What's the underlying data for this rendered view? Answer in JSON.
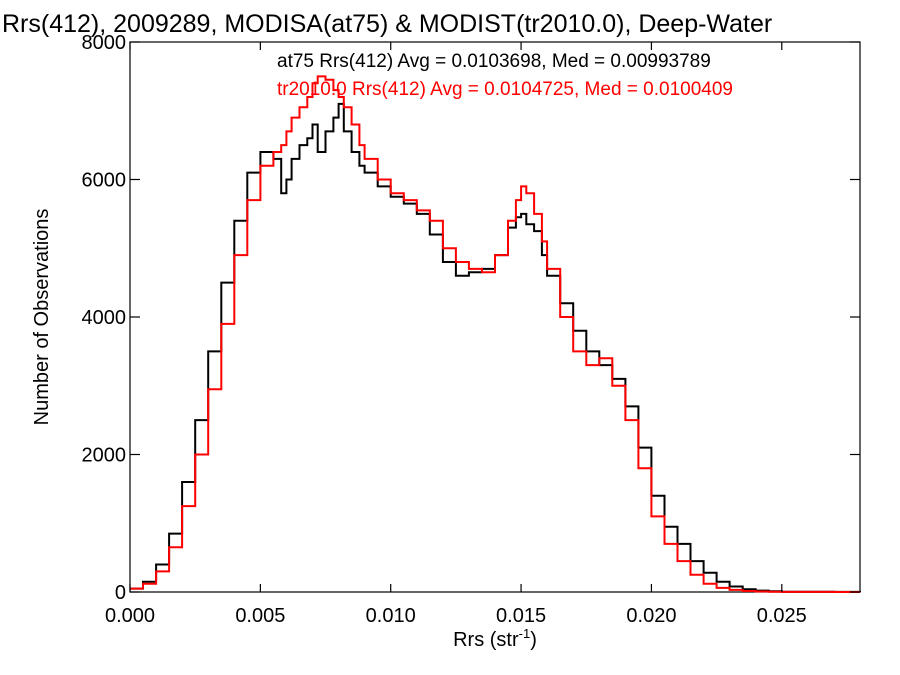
{
  "chart_data": {
    "type": "line",
    "title": "Rrs(412), 2009289, MODISA(at75) & MODIST(tr2010.0), Deep-Water",
    "xlabel": "Rrs (str",
    "xlabel_sup": "-1",
    "xlabel_close": ")",
    "ylabel": "Number of Observations",
    "xlim": [
      0.0,
      0.028
    ],
    "ylim": [
      0,
      8000
    ],
    "xticks": [
      0.0,
      0.005,
      0.01,
      0.015,
      0.02,
      0.025
    ],
    "xtick_labels": [
      "0.000",
      "0.005",
      "0.010",
      "0.015",
      "0.020",
      "0.025"
    ],
    "yticks": [
      0,
      2000,
      4000,
      6000,
      8000
    ],
    "ytick_labels": [
      "0",
      "2000",
      "4000",
      "6000",
      "8000"
    ],
    "grid": false,
    "legend_position": "top-right",
    "series": [
      {
        "name": "at75",
        "label": "at75 Rrs(412) Avg = 0.0103698, Med = 0.00993789",
        "color": "#000000",
        "x": [
          0.0,
          0.0005,
          0.001,
          0.0015,
          0.002,
          0.0025,
          0.003,
          0.0035,
          0.004,
          0.0045,
          0.005,
          0.0055,
          0.0058,
          0.006,
          0.0062,
          0.0065,
          0.0068,
          0.007,
          0.0072,
          0.0075,
          0.0078,
          0.008,
          0.0082,
          0.0085,
          0.0088,
          0.009,
          0.0095,
          0.01,
          0.0105,
          0.011,
          0.0115,
          0.012,
          0.0125,
          0.013,
          0.0135,
          0.014,
          0.0145,
          0.0148,
          0.015,
          0.0152,
          0.0155,
          0.0158,
          0.016,
          0.0165,
          0.017,
          0.0175,
          0.018,
          0.0185,
          0.019,
          0.0195,
          0.02,
          0.0205,
          0.021,
          0.0215,
          0.022,
          0.0225,
          0.023,
          0.0235,
          0.024,
          0.0245,
          0.025,
          0.026,
          0.027,
          0.028
        ],
        "y": [
          50,
          150,
          400,
          850,
          1600,
          2500,
          3500,
          4500,
          5400,
          6100,
          6400,
          6300,
          5800,
          6000,
          6300,
          6500,
          6600,
          6800,
          6400,
          6700,
          6900,
          7100,
          6700,
          6400,
          6200,
          6100,
          5900,
          5750,
          5650,
          5500,
          5200,
          4800,
          4600,
          4650,
          4700,
          4900,
          5300,
          5450,
          5500,
          5350,
          5250,
          4900,
          4600,
          4200,
          3800,
          3500,
          3300,
          3100,
          2700,
          2100,
          1400,
          950,
          700,
          450,
          280,
          150,
          80,
          40,
          20,
          10,
          5,
          3,
          2,
          0
        ]
      },
      {
        "name": "tr2010.0",
        "label": "tr2010.0 Rrs(412) Avg = 0.0104725, Med = 0.0100409",
        "color": "#ff0000",
        "x": [
          0.0,
          0.0005,
          0.001,
          0.0015,
          0.002,
          0.0025,
          0.003,
          0.0035,
          0.004,
          0.0045,
          0.005,
          0.0055,
          0.0058,
          0.006,
          0.0062,
          0.0065,
          0.0068,
          0.007,
          0.0072,
          0.0075,
          0.0078,
          0.008,
          0.0082,
          0.0085,
          0.0088,
          0.009,
          0.0095,
          0.01,
          0.0105,
          0.011,
          0.0115,
          0.012,
          0.0125,
          0.013,
          0.0135,
          0.014,
          0.0145,
          0.0148,
          0.015,
          0.0152,
          0.0155,
          0.0158,
          0.016,
          0.0165,
          0.017,
          0.0175,
          0.018,
          0.0185,
          0.019,
          0.0195,
          0.02,
          0.0205,
          0.021,
          0.0215,
          0.022,
          0.0225,
          0.023,
          0.0235,
          0.024,
          0.0245,
          0.025,
          0.026,
          0.027,
          0.028
        ],
        "y": [
          50,
          120,
          300,
          650,
          1250,
          2000,
          2950,
          3900,
          4900,
          5700,
          6200,
          6400,
          6500,
          6700,
          6900,
          7050,
          7200,
          7400,
          7500,
          7450,
          7300,
          7200,
          7050,
          6800,
          6500,
          6300,
          6000,
          5800,
          5700,
          5550,
          5400,
          5000,
          4800,
          4700,
          4650,
          4900,
          5400,
          5700,
          5900,
          5800,
          5500,
          5100,
          4700,
          4000,
          3500,
          3300,
          3400,
          3000,
          2500,
          1800,
          1100,
          700,
          450,
          250,
          120,
          60,
          30,
          15,
          8,
          4,
          2,
          1,
          0,
          0
        ]
      }
    ]
  }
}
